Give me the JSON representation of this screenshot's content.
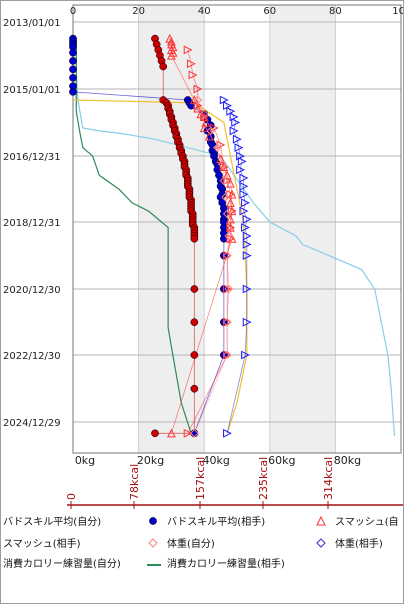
{
  "chart_data": {
    "type": "scatter",
    "orientation": "vertical-time",
    "y_axis": {
      "type": "date",
      "ticks": [
        "2013/01/01",
        "2015/01/01",
        "2016/12/31",
        "2018/12/31",
        "2020/12/30",
        "2022/12/30",
        "2024/12/29"
      ],
      "range": [
        "2013/01/01",
        "2025/06/01"
      ]
    },
    "x_axis_top": {
      "ticks": [
        "0",
        "20",
        "40",
        "60",
        "80",
        "10"
      ],
      "range": [
        0,
        100
      ]
    },
    "x_axis_bottom": {
      "ticks": [
        "0kg",
        "20kg",
        "40kg",
        "60kg",
        "80kg"
      ],
      "range": [
        0,
        100
      ]
    },
    "calorie_axis": {
      "ticks": [
        "0",
        "78kcal",
        "157kcal",
        "235kcal",
        "314kcal"
      ]
    },
    "shaded_bands": [
      [
        20,
        40
      ],
      [
        60,
        80
      ]
    ],
    "legend": [
      {
        "label": "バドスキル平均(自分)",
        "marker": "circle-red",
        "color": "#cc0000"
      },
      {
        "label": "バドスキル平均(相手)",
        "marker": "circle-blue",
        "color": "#0000cc"
      },
      {
        "label": "スマッシュ(自",
        "marker": "triangle-up-red",
        "color": "#ff3333"
      },
      {
        "label": "スマッシュ(相手)",
        "marker": "triangle-right-red",
        "color": "#ff3333"
      },
      {
        "label": "体重(自分)",
        "marker": "diamond-red",
        "color": "#ff8080"
      },
      {
        "label": "体重(相手)",
        "marker": "diamond-blue",
        "color": "#3333cc"
      },
      {
        "label": "消費カロリー練習量(自分)",
        "marker": "line-lightblue",
        "color": "#87ceeb"
      },
      {
        "label": "消費カロリー練習量(相手)",
        "marker": "line-green",
        "color": "#2e8b57"
      }
    ],
    "series": [
      {
        "name": "バドスキル平均(自分)",
        "color": "#cc0000",
        "points": [
          [
            "2013/07/01",
            25
          ],
          [
            "2013/09/01",
            25.5
          ],
          [
            "2013/11/01",
            26
          ],
          [
            "2014/01/01",
            26.5
          ],
          [
            "2014/03/01",
            27
          ],
          [
            "2014/05/01",
            27.5
          ],
          [
            "2015/05/01",
            27.5
          ],
          [
            "2015/06/01",
            28.5
          ],
          [
            "2015/07/01",
            29
          ],
          [
            "2015/08/01",
            29
          ],
          [
            "2015/09/01",
            29.5
          ],
          [
            "2015/10/01",
            29.5
          ],
          [
            "2015/11/01",
            30
          ],
          [
            "2015/12/01",
            30
          ],
          [
            "2016/01/01",
            30.5
          ],
          [
            "2016/02/01",
            30.5
          ],
          [
            "2016/03/01",
            31
          ],
          [
            "2016/04/01",
            31
          ],
          [
            "2016/05/01",
            31.5
          ],
          [
            "2016/06/01",
            31.5
          ],
          [
            "2016/07/01",
            32
          ],
          [
            "2016/08/01",
            32
          ],
          [
            "2016/09/01",
            32.5
          ],
          [
            "2016/10/01",
            32.5
          ],
          [
            "2016/11/01",
            33
          ],
          [
            "2016/12/01",
            33
          ],
          [
            "2017/01/01",
            33.5
          ],
          [
            "2017/02/01",
            33.5
          ],
          [
            "2017/03/01",
            34
          ],
          [
            "2017/04/01",
            34
          ],
          [
            "2017/05/01",
            34
          ],
          [
            "2017/06/01",
            34.5
          ],
          [
            "2017/07/01",
            34.5
          ],
          [
            "2017/08/01",
            34.5
          ],
          [
            "2017/09/01",
            35
          ],
          [
            "2017/10/01",
            35
          ],
          [
            "2017/11/01",
            35
          ],
          [
            "2017/12/01",
            35
          ],
          [
            "2018/01/01",
            35.5
          ],
          [
            "2018/02/01",
            35.5
          ],
          [
            "2018/03/01",
            35.5
          ],
          [
            "2018/04/01",
            35.5
          ],
          [
            "2018/05/01",
            36
          ],
          [
            "2018/06/01",
            36
          ],
          [
            "2018/07/01",
            36
          ],
          [
            "2018/08/01",
            36
          ],
          [
            "2018/09/01",
            36
          ],
          [
            "2018/10/01",
            36.5
          ],
          [
            "2018/11/01",
            36.5
          ],
          [
            "2018/12/01",
            36.5
          ],
          [
            "2019/01/01",
            36.5
          ],
          [
            "2019/02/01",
            36.5
          ],
          [
            "2019/03/01",
            37
          ],
          [
            "2019/04/01",
            37
          ],
          [
            "2019/05/01",
            37
          ],
          [
            "2019/06/01",
            37
          ],
          [
            "2019/07/01",
            37
          ],
          [
            "2020/12/30",
            37
          ],
          [
            "2022/01/01",
            37
          ],
          [
            "2022/12/30",
            37
          ],
          [
            "2024/01/01",
            37
          ],
          [
            "2025/05/01",
            37
          ],
          [
            "2025/05/01",
            25
          ]
        ]
      },
      {
        "name": "バドスキル平均(相手)",
        "color": "#0000cc",
        "points": [
          [
            "2013/07/01",
            0
          ],
          [
            "2013/08/01",
            0
          ],
          [
            "2013/09/01",
            0
          ],
          [
            "2013/10/01",
            0
          ],
          [
            "2013/12/01",
            0
          ],
          [
            "2014/03/01",
            0
          ],
          [
            "2014/06/01",
            0
          ],
          [
            "2014/09/01",
            0
          ],
          [
            "2014/12/01",
            0
          ],
          [
            "2015/02/01",
            0
          ],
          [
            "2015/05/01",
            35
          ],
          [
            "2015/06/01",
            35.5
          ],
          [
            "2015/07/01",
            36
          ],
          [
            "2015/10/01",
            40
          ],
          [
            "2015/12/01",
            41
          ],
          [
            "2016/02/01",
            42
          ],
          [
            "2016/04/01",
            41
          ],
          [
            "2016/06/01",
            42
          ],
          [
            "2016/08/01",
            42
          ],
          [
            "2016/09/01",
            42.5
          ],
          [
            "2016/11/01",
            42.5
          ],
          [
            "2016/12/01",
            43
          ],
          [
            "2017/01/01",
            43
          ],
          [
            "2017/03/01",
            43.5
          ],
          [
            "2017/04/01",
            44
          ],
          [
            "2017/06/01",
            44
          ],
          [
            "2017/08/01",
            44.5
          ],
          [
            "2017/10/01",
            45
          ],
          [
            "2017/12/01",
            45
          ],
          [
            "2018/01/01",
            45.5
          ],
          [
            "2018/03/01",
            45.5
          ],
          [
            "2018/04/01",
            45
          ],
          [
            "2018/06/01",
            45.5
          ],
          [
            "2018/08/01",
            46
          ],
          [
            "2018/10/01",
            46
          ],
          [
            "2018/12/01",
            46
          ],
          [
            "2019/01/01",
            46
          ],
          [
            "2019/03/01",
            46
          ],
          [
            "2019/05/01",
            46
          ],
          [
            "2019/07/01",
            46
          ],
          [
            "2020/01/01",
            46
          ],
          [
            "2020/12/30",
            46
          ],
          [
            "2022/01/01",
            46
          ],
          [
            "2022/12/30",
            46
          ],
          [
            "2025/05/01",
            37
          ]
        ]
      },
      {
        "name": "スマッシュ(自",
        "color": "#ff3333",
        "points": [
          [
            "2013/07/01",
            29.5
          ],
          [
            "2013/08/01",
            30
          ],
          [
            "2013/09/01",
            30
          ],
          [
            "2013/10/01",
            30.5
          ],
          [
            "2013/11/01",
            30
          ],
          [
            "2013/12/01",
            30.5
          ],
          [
            "2014/01/01",
            30
          ],
          [
            "2015/05/01",
            37
          ],
          [
            "2015/08/01",
            38
          ],
          [
            "2015/10/01",
            39
          ],
          [
            "2015/11/01",
            40
          ],
          [
            "2016/01/01",
            40.5
          ],
          [
            "2016/03/01",
            40
          ],
          [
            "2016/06/01",
            41.5
          ],
          [
            "2017/02/01",
            45
          ],
          [
            "2017/05/01",
            46
          ],
          [
            "2017/08/01",
            47
          ],
          [
            "2017/11/01",
            48
          ],
          [
            "2018/03/01",
            48.5
          ],
          [
            "2018/06/01",
            48
          ],
          [
            "2018/09/01",
            48.5
          ],
          [
            "2018/12/01",
            48
          ],
          [
            "2019/03/01",
            48
          ],
          [
            "2019/07/01",
            48.5
          ],
          [
            "2025/05/01",
            30
          ]
        ]
      },
      {
        "name": "スマッシュ(相手)",
        "color": "#ff3333",
        "points": [
          [
            "2013/11/01",
            35
          ],
          [
            "2014/04/01",
            36
          ],
          [
            "2014/08/01",
            36.5
          ],
          [
            "2015/01/01",
            38
          ],
          [
            "2015/07/01",
            38
          ],
          [
            "2015/11/01",
            40
          ],
          [
            "2016/03/01",
            43
          ],
          [
            "2016/09/01",
            45
          ],
          [
            "2017/05/01",
            46
          ],
          [
            "2017/10/01",
            47
          ],
          [
            "2018/03/01",
            48
          ],
          [
            "2018/09/01",
            48.5
          ],
          [
            "2019/03/01",
            48
          ],
          [
            "2019/07/01",
            48
          ],
          [
            "2020/01/01",
            47
          ],
          [
            "2020/12/30",
            47
          ],
          [
            "2022/01/01",
            47
          ],
          [
            "2022/12/30",
            47
          ],
          [
            "2025/05/01",
            35
          ]
        ]
      },
      {
        "name": "体重(自分)",
        "color": "#ff8080",
        "points": [
          [
            "2015/05/01",
            38
          ],
          [
            "2015/10/01",
            40
          ],
          [
            "2016/04/01",
            42
          ],
          [
            "2016/10/01",
            44
          ],
          [
            "2017/04/01",
            45.5
          ],
          [
            "2017/10/01",
            46
          ],
          [
            "2018/04/01",
            46.5
          ],
          [
            "2018/10/01",
            47
          ],
          [
            "2019/06/01",
            47.5
          ],
          [
            "2020/01/01",
            47
          ],
          [
            "2020/12/30",
            47.5
          ],
          [
            "2022/01/01",
            47
          ],
          [
            "2022/12/30",
            47
          ],
          [
            "2025/05/01",
            37
          ]
        ]
      },
      {
        "name": "体重(相手)",
        "color": "#3333cc",
        "points": [
          [
            "2015/05/01",
            46
          ],
          [
            "2015/07/01",
            47
          ],
          [
            "2015/09/01",
            48
          ],
          [
            "2015/11/01",
            49
          ],
          [
            "2016/01/01",
            49.5
          ],
          [
            "2016/04/01",
            49
          ],
          [
            "2016/07/01",
            50
          ],
          [
            "2016/10/01",
            50.5
          ],
          [
            "2017/01/01",
            51
          ],
          [
            "2017/03/01",
            51.5
          ],
          [
            "2017/06/01",
            51
          ],
          [
            "2017/09/01",
            52
          ],
          [
            "2017/12/01",
            52
          ],
          [
            "2018/03/01",
            52
          ],
          [
            "2018/06/01",
            52.5
          ],
          [
            "2018/09/01",
            52
          ],
          [
            "2018/12/01",
            53
          ],
          [
            "2019/03/01",
            52.5
          ],
          [
            "2019/06/01",
            53
          ],
          [
            "2019/09/01",
            53
          ],
          [
            "2020/01/01",
            53
          ],
          [
            "2020/12/30",
            53
          ],
          [
            "2022/01/01",
            53
          ],
          [
            "2022/12/30",
            52.5
          ],
          [
            "2025/05/01",
            47
          ]
        ]
      }
    ],
    "lines": [
      {
        "name": "消費カロリー練習量(自分)",
        "color": "#87ceeb",
        "points": [
          [
            "2013/07/01",
            1
          ],
          [
            "2014/06/01",
            1
          ],
          [
            "2015/05/01",
            1.5
          ],
          [
            "2016/03/01",
            3
          ],
          [
            "2016/04/01",
            8
          ],
          [
            "2016/05/01",
            15
          ],
          [
            "2016/07/01",
            25
          ],
          [
            "2017/01/01",
            45
          ],
          [
            "2018/06/01",
            55
          ],
          [
            "2018/12/31",
            60
          ],
          [
            "2019/06/01",
            68
          ],
          [
            "2019/09/01",
            70
          ],
          [
            "2020/01/01",
            78
          ],
          [
            "2020/06/01",
            88
          ],
          [
            "2021/01/01",
            92
          ],
          [
            "2022/01/01",
            94
          ],
          [
            "2023/01/01",
            96
          ],
          [
            "2024/01/01",
            97
          ],
          [
            "2025/06/01",
            98
          ]
        ]
      },
      {
        "name": "消費カロリー練習量(相手)",
        "color": "#2e8b57",
        "points": [
          [
            "2013/07/01",
            1
          ],
          [
            "2015/09/01",
            1
          ],
          [
            "2016/04/01",
            2
          ],
          [
            "2016/10/01",
            3
          ],
          [
            "2017/01/01",
            6
          ],
          [
            "2017/08/01",
            8
          ],
          [
            "2018/01/01",
            14
          ],
          [
            "2018/06/01",
            18
          ],
          [
            "2018/09/01",
            23
          ],
          [
            "2018/12/31",
            27
          ],
          [
            "2019/03/01",
            29
          ],
          [
            "2022/03/01",
            29
          ],
          [
            "2022/10/01",
            30
          ],
          [
            "2024/06/01",
            33
          ],
          [
            "2025/05/01",
            36
          ]
        ]
      },
      {
        "name": "connector-orange",
        "color": "#f0c030",
        "points": [
          [
            "2015/05/01",
            0
          ],
          [
            "2015/06/01",
            37
          ],
          [
            "2016/01/01",
            46
          ],
          [
            "2017/01/01",
            48
          ],
          [
            "2018/01/01",
            50
          ],
          [
            "2019/01/01",
            52
          ],
          [
            "2020/12/30",
            53
          ],
          [
            "2022/12/30",
            53
          ],
          [
            "2024/06/01",
            50
          ],
          [
            "2025/05/01",
            47
          ]
        ]
      }
    ]
  }
}
